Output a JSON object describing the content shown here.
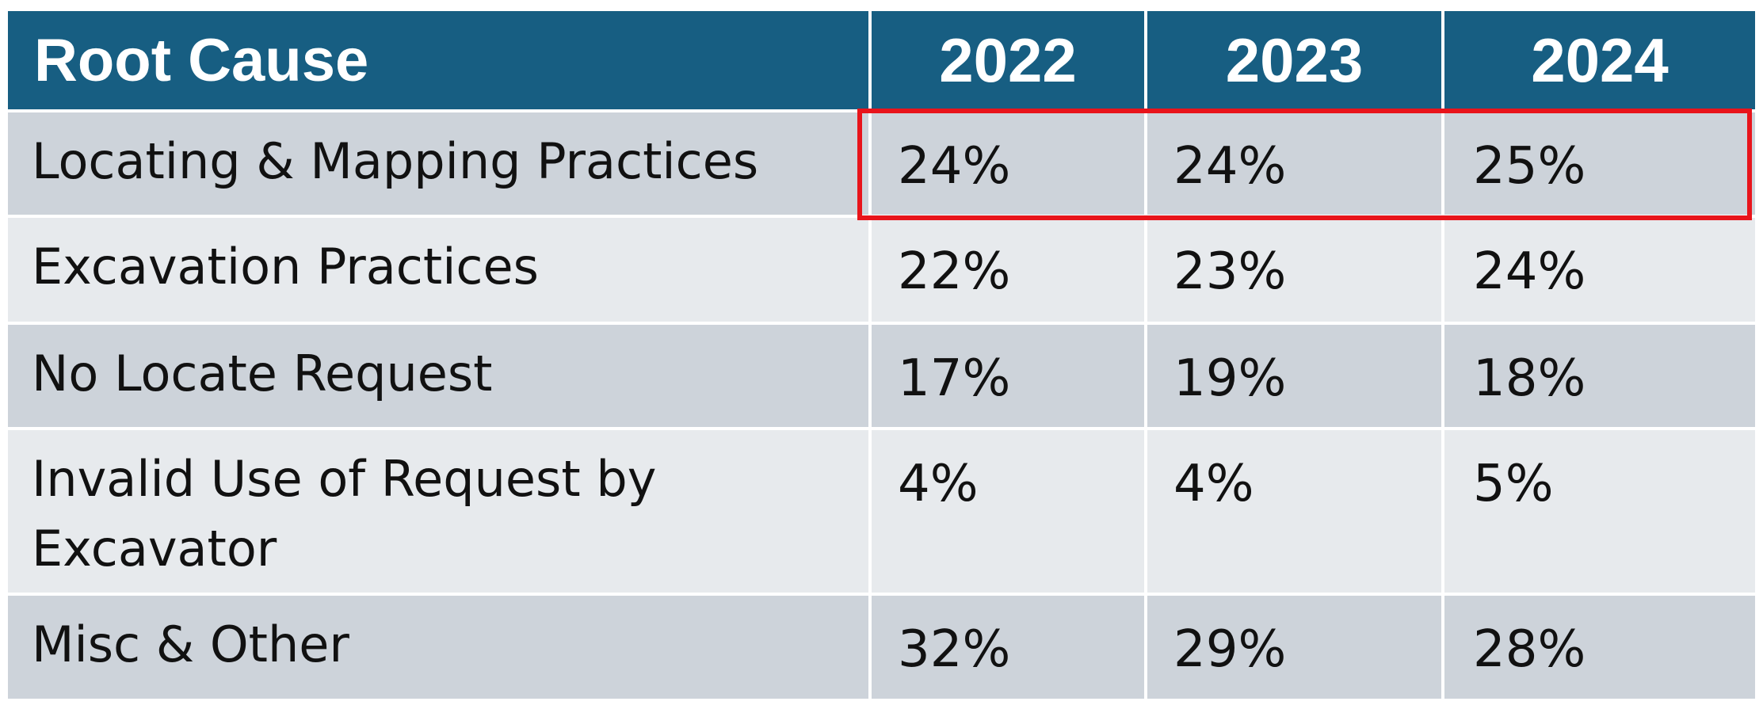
{
  "table": {
    "header": [
      "Root Cause",
      "2022",
      "2023",
      "2024"
    ],
    "rows": [
      {
        "cause": "Locating & Mapping Practices",
        "v2022": "24%",
        "v2023": "24%",
        "v2024": "25%"
      },
      {
        "cause": "Excavation Practices",
        "v2022": "22%",
        "v2023": "23%",
        "v2024": "24%"
      },
      {
        "cause": "No Locate Request",
        "v2022": "17%",
        "v2023": "19%",
        "v2024": "18%"
      },
      {
        "cause": "Invalid Use of Request by Excavator",
        "v2022": "4%",
        "v2023": "4%",
        "v2024": "5%"
      },
      {
        "cause": "Misc & Other",
        "v2022": "32%",
        "v2023": "29%",
        "v2024": "28%"
      }
    ]
  },
  "colors": {
    "header_bg": "#175e82",
    "row_dark": "#cdd3da",
    "row_light": "#e7eaed",
    "highlight": "#e8141b"
  },
  "chart_data": {
    "type": "table",
    "columns": [
      "Root Cause",
      "2022",
      "2023",
      "2024"
    ],
    "categories": [
      "Locating & Mapping Practices",
      "Excavation Practices",
      "No Locate Request",
      "Invalid Use of Request by Excavator",
      "Misc & Other"
    ],
    "series": [
      {
        "name": "2022",
        "values": [
          24,
          22,
          17,
          4,
          32
        ]
      },
      {
        "name": "2023",
        "values": [
          24,
          23,
          19,
          4,
          29
        ]
      },
      {
        "name": "2024",
        "values": [
          25,
          24,
          18,
          5,
          28
        ]
      }
    ],
    "unit": "%",
    "highlighted_row": "Locating & Mapping Practices"
  }
}
